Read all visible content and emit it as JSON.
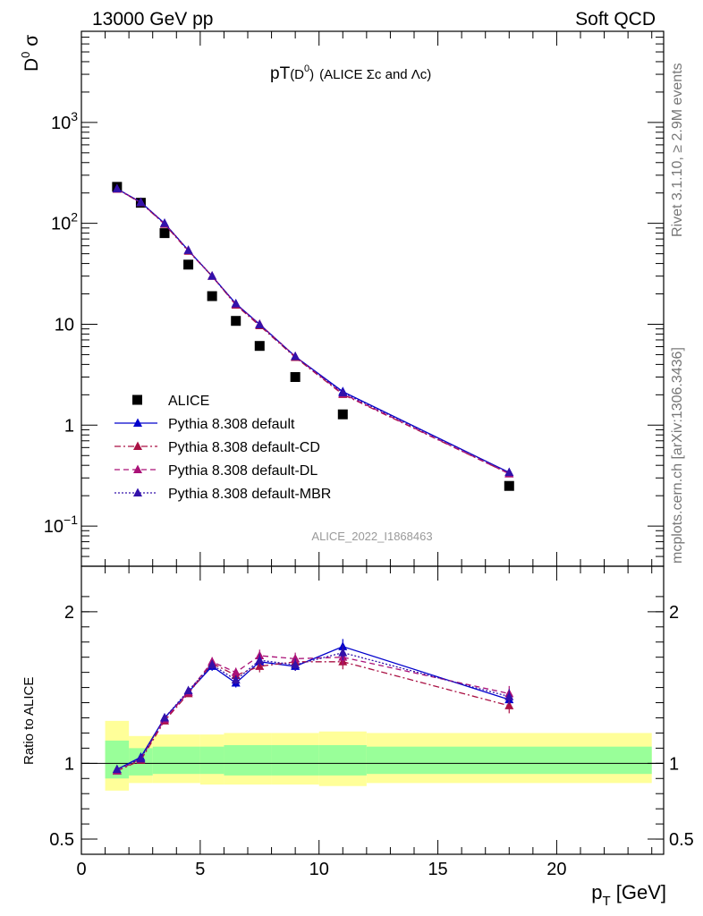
{
  "header": {
    "left": "13000 GeV pp",
    "right": "Soft QCD"
  },
  "side_labels": {
    "rivet": "Rivet 3.1.10, ≥ 2.9M events",
    "mcplots": "mcplots.cern.ch [arXiv:1306.3436]"
  },
  "watermark": "ALICE_2022_I1868463",
  "chart_data": [
    {
      "type": "scatter",
      "panel": "main",
      "title_parts": {
        "pT": "pT",
        "paren_open": "(D",
        "sup": "0",
        "paren_close": ")",
        "rest": "(ALICE Σc and Λc)"
      },
      "ylabel": {
        "main": "D",
        "sup": "0",
        "rest": " σ"
      },
      "yscale": "log",
      "ylim": [
        0.04,
        8000
      ],
      "xlim": [
        0,
        24.5
      ],
      "y_ticks": [
        {
          "value": 0.1,
          "base": "10",
          "exp": "−1"
        },
        {
          "value": 1,
          "base": "1",
          "exp": ""
        },
        {
          "value": 10,
          "base": "10",
          "exp": ""
        },
        {
          "value": 100,
          "base": "10",
          "exp": "2"
        },
        {
          "value": 1000,
          "base": "10",
          "exp": "3"
        }
      ],
      "legend_position": "bottom-left",
      "series": [
        {
          "name": "ALICE",
          "marker": "square",
          "color": "#000000",
          "x": [
            1.5,
            2.5,
            3.5,
            4.5,
            5.5,
            6.5,
            7.5,
            9,
            11,
            18
          ],
          "y": [
            230,
            160,
            80,
            39,
            19,
            10.8,
            6.1,
            3.0,
            1.28,
            0.25
          ]
        },
        {
          "name": "Pythia 8.308 default",
          "marker": "triangle",
          "line": "solid",
          "color": "#0000cc",
          "x": [
            1.5,
            2.5,
            3.5,
            4.5,
            5.5,
            6.5,
            7.5,
            9,
            11,
            18
          ],
          "y": [
            220,
            162,
            100,
            54,
            30,
            16,
            10,
            4.8,
            2.15,
            0.34
          ]
        },
        {
          "name": "Pythia 8.308 default-CD",
          "marker": "triangle",
          "line": "dashdot",
          "color": "#aa1144",
          "x": [
            1.5,
            2.5,
            3.5,
            4.5,
            5.5,
            6.5,
            7.5,
            9,
            11,
            18
          ],
          "y": [
            218,
            160,
            98,
            53,
            30,
            15.5,
            9.7,
            4.7,
            2.02,
            0.33
          ]
        },
        {
          "name": "Pythia 8.308 default-DL",
          "marker": "triangle",
          "line": "dashed",
          "color": "#aa1177",
          "x": [
            1.5,
            2.5,
            3.5,
            4.5,
            5.5,
            6.5,
            7.5,
            9,
            11,
            18
          ],
          "y": [
            219,
            161,
            99,
            54,
            30,
            15.8,
            10,
            4.8,
            2.05,
            0.33
          ]
        },
        {
          "name": "Pythia 8.308 default-MBR",
          "marker": "triangle",
          "line": "dotted",
          "color": "#3311aa",
          "x": [
            1.5,
            2.5,
            3.5,
            4.5,
            5.5,
            6.5,
            7.5,
            9,
            11,
            18
          ],
          "y": [
            220,
            161,
            100,
            54,
            30,
            16,
            9.9,
            4.8,
            2.1,
            0.34
          ]
        }
      ]
    },
    {
      "type": "line",
      "panel": "ratio",
      "ylabel": "Ratio to ALICE",
      "xlabel": {
        "main": "p",
        "sub": "T",
        "rest": " [GeV]"
      },
      "ylim": [
        0.4,
        2.3
      ],
      "xlim": [
        0,
        24.5
      ],
      "x_ticks": [
        0,
        5,
        10,
        15,
        20
      ],
      "y_ticks": [
        {
          "value": 0.5,
          "label": "0.5"
        },
        {
          "value": 1,
          "label": "1"
        },
        {
          "value": 2,
          "label": "2"
        }
      ],
      "bands": [
        {
          "x0": 1,
          "x1": 2,
          "yellow": [
            0.82,
            1.28
          ],
          "green": [
            0.9,
            1.15
          ]
        },
        {
          "x0": 2,
          "x1": 3,
          "yellow": [
            0.87,
            1.18
          ],
          "green": [
            0.92,
            1.1
          ]
        },
        {
          "x0": 3,
          "x1": 5,
          "yellow": [
            0.87,
            1.19
          ],
          "green": [
            0.93,
            1.11
          ]
        },
        {
          "x0": 5,
          "x1": 6,
          "yellow": [
            0.86,
            1.19
          ],
          "green": [
            0.93,
            1.11
          ]
        },
        {
          "x0": 6,
          "x1": 8,
          "yellow": [
            0.86,
            1.2
          ],
          "green": [
            0.92,
            1.12
          ]
        },
        {
          "x0": 8,
          "x1": 10,
          "yellow": [
            0.86,
            1.2
          ],
          "green": [
            0.92,
            1.12
          ]
        },
        {
          "x0": 10,
          "x1": 12,
          "yellow": [
            0.85,
            1.21
          ],
          "green": [
            0.92,
            1.12
          ]
        },
        {
          "x0": 12,
          "x1": 24,
          "yellow": [
            0.87,
            1.2
          ],
          "green": [
            0.93,
            1.11
          ]
        }
      ],
      "series": [
        {
          "name": "Pythia 8.308 default",
          "line": "solid",
          "color": "#0000cc",
          "x": [
            1.5,
            2.5,
            3.5,
            4.5,
            5.5,
            6.5,
            7.5,
            9,
            11,
            18
          ],
          "y": [
            0.96,
            1.04,
            1.3,
            1.47,
            1.64,
            1.53,
            1.67,
            1.64,
            1.77,
            1.42
          ],
          "err": [
            0.01,
            0.01,
            0.02,
            0.02,
            0.03,
            0.03,
            0.04,
            0.03,
            0.05,
            0.05
          ]
        },
        {
          "name": "Pythia 8.308 default-CD",
          "line": "dashdot",
          "color": "#aa1144",
          "x": [
            1.5,
            2.5,
            3.5,
            4.5,
            5.5,
            6.5,
            7.5,
            9,
            11,
            18
          ],
          "y": [
            0.95,
            1.02,
            1.28,
            1.46,
            1.66,
            1.58,
            1.64,
            1.67,
            1.67,
            1.38
          ],
          "err": [
            0.01,
            0.01,
            0.02,
            0.02,
            0.03,
            0.03,
            0.04,
            0.04,
            0.05,
            0.05
          ]
        },
        {
          "name": "Pythia 8.308 default-DL",
          "line": "dashed",
          "color": "#aa1177",
          "x": [
            1.5,
            2.5,
            3.5,
            4.5,
            5.5,
            6.5,
            7.5,
            9,
            11,
            18
          ],
          "y": [
            0.95,
            1.03,
            1.29,
            1.47,
            1.67,
            1.6,
            1.71,
            1.69,
            1.7,
            1.46
          ],
          "err": [
            0.01,
            0.01,
            0.02,
            0.02,
            0.03,
            0.03,
            0.04,
            0.04,
            0.05,
            0.05
          ]
        },
        {
          "name": "Pythia 8.308 default-MBR",
          "line": "dotted",
          "color": "#3311aa",
          "x": [
            1.5,
            2.5,
            3.5,
            4.5,
            5.5,
            6.5,
            7.5,
            9,
            11,
            18
          ],
          "y": [
            0.96,
            1.03,
            1.3,
            1.48,
            1.65,
            1.55,
            1.68,
            1.65,
            1.73,
            1.44
          ],
          "err": [
            0.01,
            0.01,
            0.02,
            0.02,
            0.03,
            0.03,
            0.04,
            0.04,
            0.05,
            0.05
          ]
        }
      ]
    }
  ]
}
